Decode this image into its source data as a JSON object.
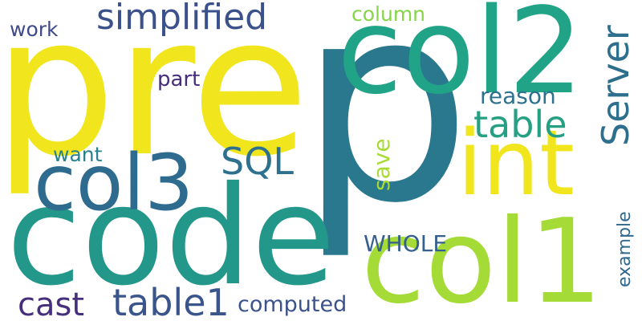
{
  "colors": {
    "background": "#ffffff",
    "palette": [
      "#fde725",
      "#a0da39",
      "#4ac16d",
      "#1fa187",
      "#277f8e",
      "#365c8d",
      "#46327e",
      "#440154"
    ]
  },
  "words": [
    {
      "text": "p",
      "color": "#2a788e",
      "orientation": "horizontal"
    },
    {
      "text": "pre",
      "color": "#f1e51d",
      "orientation": "horizontal"
    },
    {
      "text": "code",
      "color": "#22978a",
      "orientation": "horizontal"
    },
    {
      "text": "col2",
      "color": "#20a386",
      "orientation": "horizontal"
    },
    {
      "text": "col1",
      "color": "#a5db36",
      "orientation": "horizontal"
    },
    {
      "text": "int",
      "color": "#f1e51d",
      "orientation": "horizontal"
    },
    {
      "text": "col3",
      "color": "#2f6b8e",
      "orientation": "horizontal"
    },
    {
      "text": "simplified",
      "color": "#3b518b",
      "orientation": "horizontal"
    },
    {
      "text": "table",
      "color": "#25a083",
      "orientation": "horizontal"
    },
    {
      "text": "table1",
      "color": "#39558c",
      "orientation": "horizontal"
    },
    {
      "text": "cast",
      "color": "#46307e",
      "orientation": "horizontal"
    },
    {
      "text": "SQL",
      "color": "#2d718e",
      "orientation": "horizontal"
    },
    {
      "text": "Server",
      "color": "#2e6f8e",
      "orientation": "vertical"
    },
    {
      "text": "column",
      "color": "#86d549",
      "orientation": "horizontal"
    },
    {
      "text": "work",
      "color": "#3e4a89",
      "orientation": "horizontal"
    },
    {
      "text": "part",
      "color": "#472d7b",
      "orientation": "horizontal"
    },
    {
      "text": "reason",
      "color": "#2c728e",
      "orientation": "horizontal"
    },
    {
      "text": "want",
      "color": "#26828e",
      "orientation": "horizontal"
    },
    {
      "text": "save",
      "color": "#a8db34",
      "orientation": "vertical"
    },
    {
      "text": "WHOLE",
      "color": "#355f8d",
      "orientation": "horizontal"
    },
    {
      "text": "computed",
      "color": "#3b528b",
      "orientation": "horizontal"
    },
    {
      "text": "example",
      "color": "#31688e",
      "orientation": "vertical"
    }
  ]
}
